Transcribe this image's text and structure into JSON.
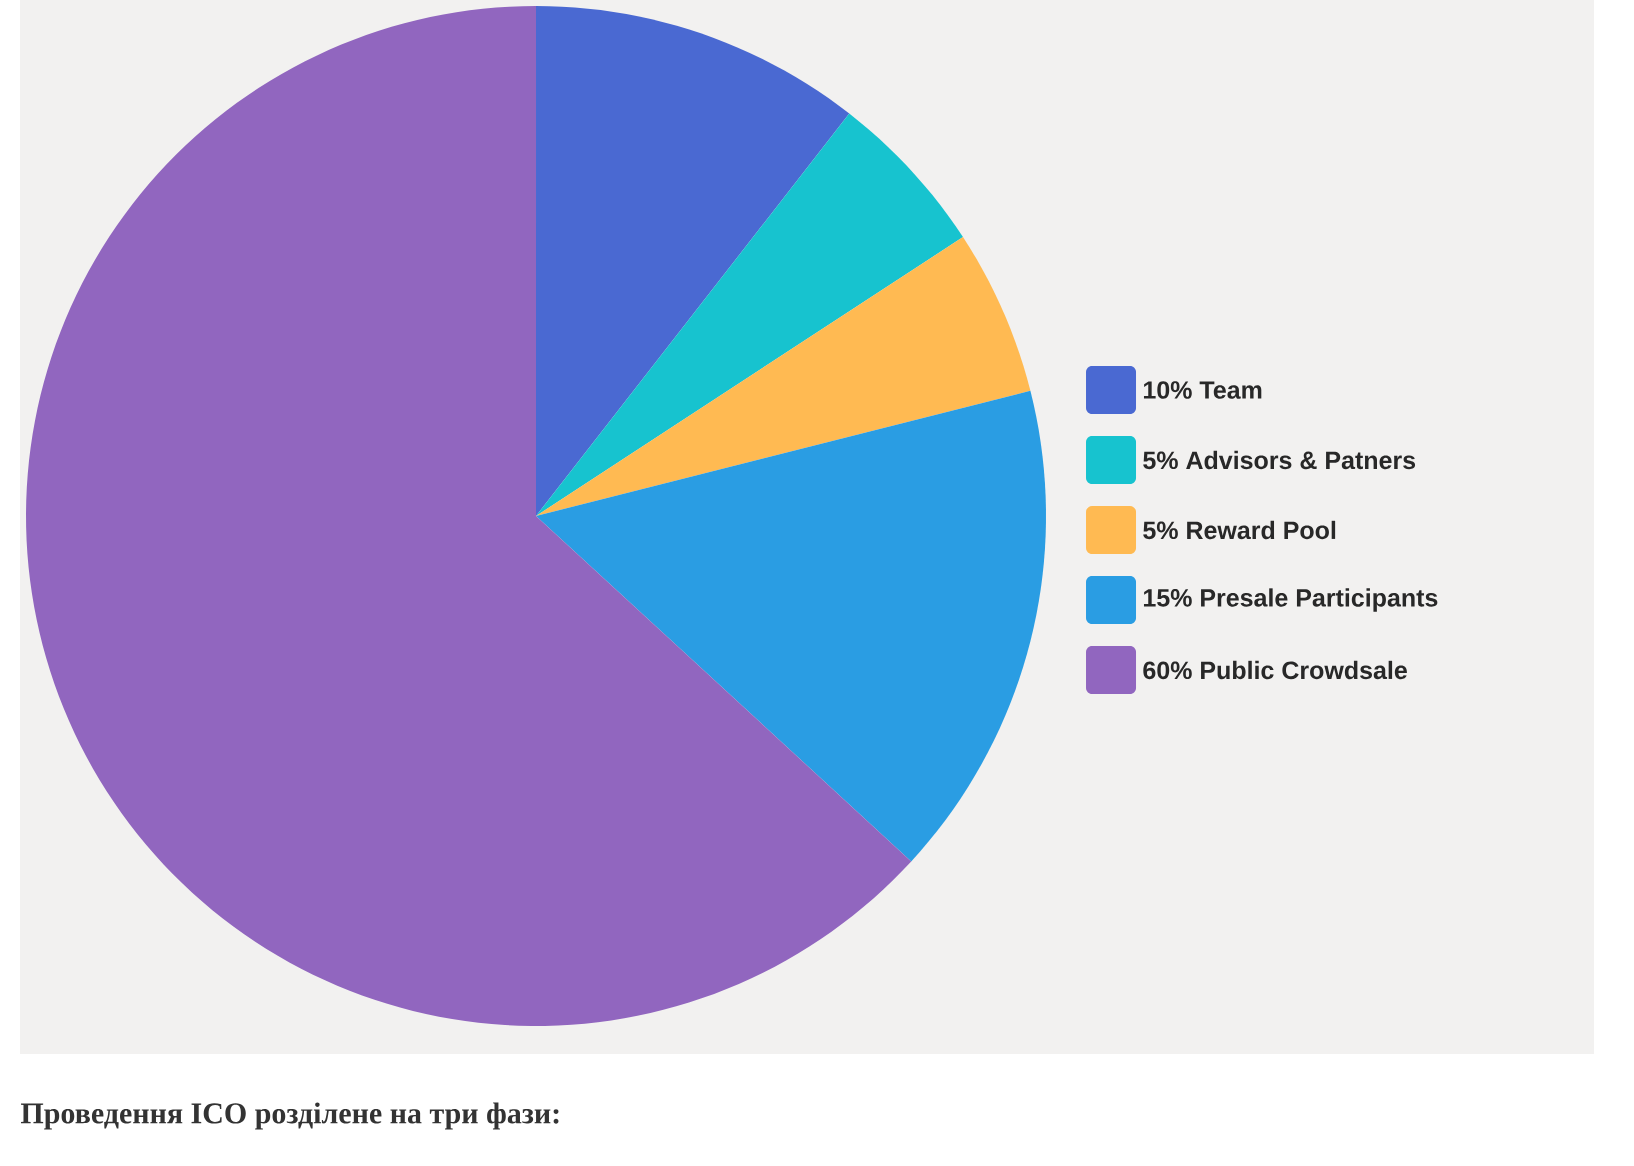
{
  "chart_data": {
    "type": "pie",
    "categories": [
      "10% Team",
      "5% Advisors & Patners",
      "5% Reward Pool",
      "15% Presale Participants",
      "60% Public Crowdsale"
    ],
    "values": [
      10,
      5,
      5,
      15,
      60
    ],
    "colors": [
      "#4a69d2",
      "#17c3cf",
      "#ffba52",
      "#2a9de3",
      "#9166bf"
    ],
    "legend": "right",
    "annotations": [
      "**Проведення ICO розділене на три фази:**"
    ]
  }
}
